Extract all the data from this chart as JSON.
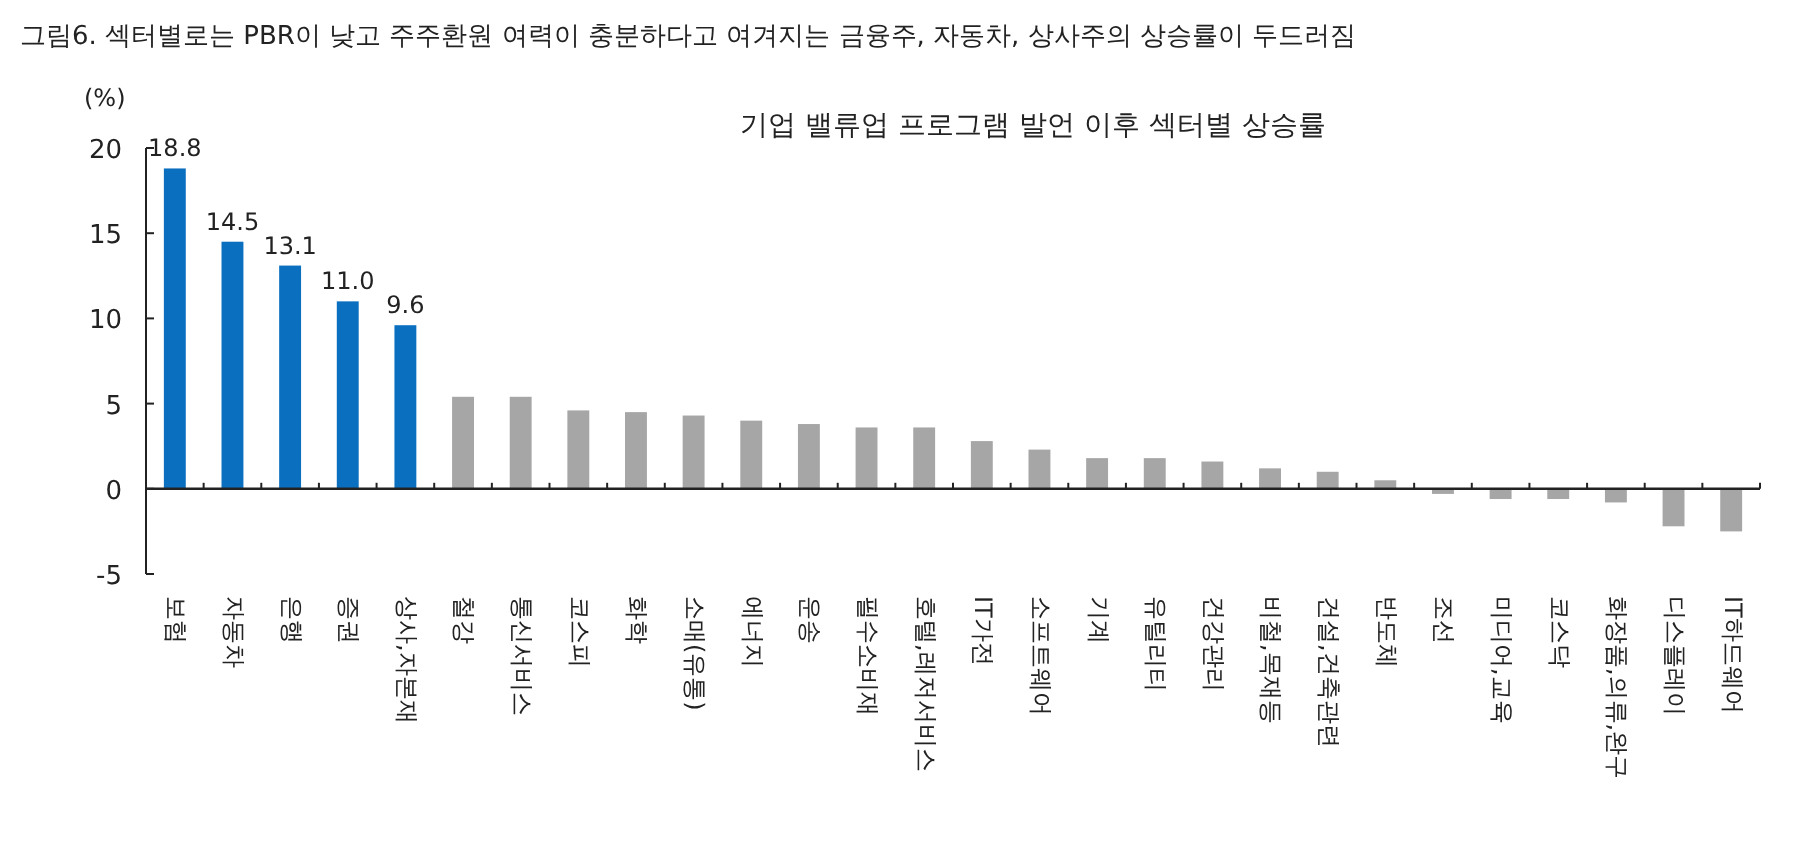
{
  "chart_data": {
    "type": "bar",
    "title": "그림6.   섹터별로는 PBR이 낮고 주주환원 여력이 충분하다고 여겨지는 금융주, 자동차, 상사주의 상승률이 두드러짐",
    "subtitle": "기업 밸류업 프로그램 발언 이후 섹터별 상승률",
    "ylabel": "(%)",
    "categories": [
      "보험",
      "자동차",
      "은행",
      "증권",
      "상사,자본재",
      "철강",
      "통신서비스",
      "코스피",
      "화학",
      "소매(유통)",
      "에너지",
      "운송",
      "필수소비재",
      "호텔,레저서비스",
      "IT가전",
      "소프트웨어",
      "기계",
      "유틸리티",
      "건강관리",
      "비철,목재등",
      "건설,건축관련",
      "반도체",
      "조선",
      "미디어,교육",
      "코스닥",
      "화장품,의류,완구",
      "디스플레이",
      "IT하드웨어"
    ],
    "values": [
      18.8,
      14.5,
      13.1,
      11.0,
      9.6,
      5.4,
      5.4,
      4.6,
      4.5,
      4.3,
      4.0,
      3.8,
      3.6,
      3.6,
      2.8,
      2.3,
      1.8,
      1.8,
      1.6,
      1.2,
      1.0,
      0.5,
      -0.3,
      -0.6,
      -0.6,
      -0.8,
      -2.2,
      -2.5
    ],
    "value_labels": [
      "18.8",
      "14.5",
      "13.1",
      "11.0",
      "9.6",
      null,
      null,
      null,
      null,
      null,
      null,
      null,
      null,
      null,
      null,
      null,
      null,
      null,
      null,
      null,
      null,
      null,
      null,
      null,
      null,
      null,
      null,
      null
    ],
    "colors": [
      "#0b6fc0",
      "#0b6fc0",
      "#0b6fc0",
      "#0b6fc0",
      "#0b6fc0",
      "#a6a6a6",
      "#a6a6a6",
      "#a6a6a6",
      "#a6a6a6",
      "#a6a6a6",
      "#a6a6a6",
      "#a6a6a6",
      "#a6a6a6",
      "#a6a6a6",
      "#a6a6a6",
      "#a6a6a6",
      "#a6a6a6",
      "#a6a6a6",
      "#a6a6a6",
      "#a6a6a6",
      "#a6a6a6",
      "#a6a6a6",
      "#a6a6a6",
      "#a6a6a6",
      "#a6a6a6",
      "#a6a6a6",
      "#a6a6a6",
      "#a6a6a6"
    ],
    "ylim": [
      -5,
      20
    ],
    "yticks": [
      -5,
      0,
      5,
      10,
      15,
      20
    ]
  }
}
